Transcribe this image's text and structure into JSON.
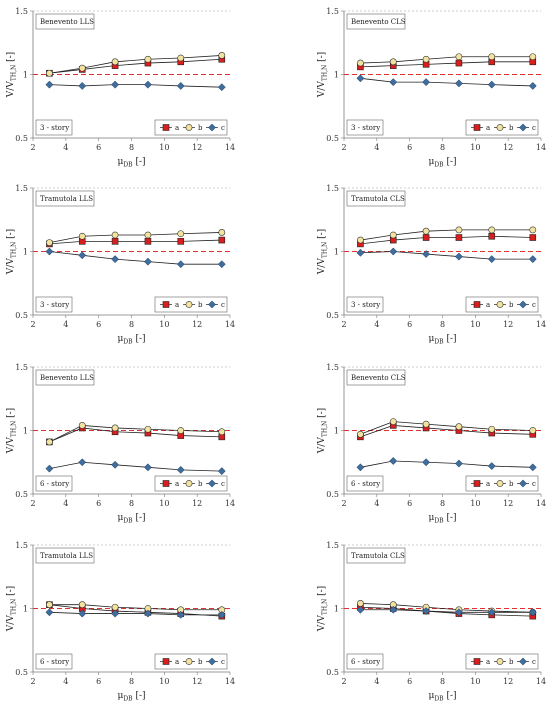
{
  "colors": {
    "a": "#d81e1e",
    "b": "#f2e4a0",
    "c": "#3f6d9e",
    "ref_line": "#e03030",
    "grid": "#9a9a9a",
    "axis": "#7a7a7a"
  },
  "chart_data": [
    {
      "type": "line",
      "title": "Benevento LLS",
      "note": "3 - story",
      "xlabel": "μ",
      "xlabel_sub": "DB",
      "xlabel_unit": " [-]",
      "ylabel": "V/V",
      "ylabel_sub": "TH,N",
      "ylabel_unit": " [-]",
      "xlim": [
        2,
        14
      ],
      "ylim": [
        0.5,
        1.5
      ],
      "xticks": [
        "2",
        "4",
        "6",
        "8",
        "10",
        "12",
        "14"
      ],
      "yticks": [
        "0.5",
        "1",
        "1.5"
      ],
      "ref_y": 1,
      "legend_position": "bottom-right",
      "x": [
        3,
        5,
        7,
        9,
        11,
        13.5
      ],
      "series": [
        {
          "name": "a",
          "marker": "square",
          "values": [
            1.01,
            1.04,
            1.07,
            1.09,
            1.1,
            1.12
          ]
        },
        {
          "name": "b",
          "marker": "circle",
          "values": [
            1.01,
            1.05,
            1.1,
            1.12,
            1.13,
            1.15
          ]
        },
        {
          "name": "c",
          "marker": "diamond",
          "values": [
            0.92,
            0.91,
            0.92,
            0.92,
            0.91,
            0.9
          ]
        }
      ]
    },
    {
      "type": "line",
      "title": "Benevento CLS",
      "note": "3 - story",
      "xlabel": "μ",
      "xlabel_sub": "DB",
      "xlabel_unit": " [-]",
      "ylabel": "V/V",
      "ylabel_sub": "TH,N",
      "ylabel_unit": " [-]",
      "xlim": [
        2,
        14
      ],
      "ylim": [
        0.5,
        1.5
      ],
      "xticks": [
        "2",
        "4",
        "6",
        "8",
        "10",
        "12",
        "14"
      ],
      "yticks": [
        "0.5",
        "1",
        "1.5"
      ],
      "ref_y": 1,
      "legend_position": "bottom-right",
      "x": [
        3,
        5,
        7,
        9,
        11,
        13.5
      ],
      "series": [
        {
          "name": "a",
          "marker": "square",
          "values": [
            1.06,
            1.07,
            1.08,
            1.09,
            1.1,
            1.1
          ]
        },
        {
          "name": "b",
          "marker": "circle",
          "values": [
            1.09,
            1.1,
            1.12,
            1.14,
            1.14,
            1.14
          ]
        },
        {
          "name": "c",
          "marker": "diamond",
          "values": [
            0.97,
            0.94,
            0.94,
            0.93,
            0.92,
            0.91
          ]
        }
      ]
    },
    {
      "type": "line",
      "title": "Tramutola LLS",
      "note": "3 - story",
      "xlabel": "μ",
      "xlabel_sub": "DB",
      "xlabel_unit": " [-]",
      "ylabel": "V/V",
      "ylabel_sub": "TH,N",
      "ylabel_unit": " [-]",
      "xlim": [
        2,
        14
      ],
      "ylim": [
        0.5,
        1.5
      ],
      "xticks": [
        "2",
        "4",
        "6",
        "8",
        "10",
        "12",
        "14"
      ],
      "yticks": [
        "0.5",
        "1",
        "1.5"
      ],
      "ref_y": 1,
      "legend_position": "bottom-right",
      "x": [
        3,
        5,
        7,
        9,
        11,
        13.5
      ],
      "series": [
        {
          "name": "a",
          "marker": "square",
          "values": [
            1.06,
            1.08,
            1.08,
            1.08,
            1.08,
            1.09
          ]
        },
        {
          "name": "b",
          "marker": "circle",
          "values": [
            1.07,
            1.12,
            1.13,
            1.13,
            1.14,
            1.15
          ]
        },
        {
          "name": "c",
          "marker": "diamond",
          "values": [
            1.0,
            0.97,
            0.94,
            0.92,
            0.9,
            0.9
          ]
        }
      ]
    },
    {
      "type": "line",
      "title": "Tramutola CLS",
      "note": "3 - story",
      "xlabel": "μ",
      "xlabel_sub": "DB",
      "xlabel_unit": " [-]",
      "ylabel": "V/V",
      "ylabel_sub": "TH,N",
      "ylabel_unit": " [-]",
      "xlim": [
        2,
        14
      ],
      "ylim": [
        0.5,
        1.5
      ],
      "xticks": [
        "2",
        "4",
        "6",
        "8",
        "10",
        "12",
        "14"
      ],
      "yticks": [
        "0.5",
        "1",
        "1.5"
      ],
      "ref_y": 1,
      "legend_position": "bottom-right",
      "x": [
        3,
        5,
        7,
        9,
        11,
        13.5
      ],
      "series": [
        {
          "name": "a",
          "marker": "square",
          "values": [
            1.06,
            1.09,
            1.11,
            1.11,
            1.12,
            1.11
          ]
        },
        {
          "name": "b",
          "marker": "circle",
          "values": [
            1.09,
            1.13,
            1.16,
            1.17,
            1.17,
            1.17
          ]
        },
        {
          "name": "c",
          "marker": "diamond",
          "values": [
            0.99,
            1.0,
            0.98,
            0.96,
            0.94,
            0.94
          ]
        }
      ]
    },
    {
      "type": "line",
      "title": "Benevento LLS",
      "note": "6 - story",
      "xlabel": "μ",
      "xlabel_sub": "DB",
      "xlabel_unit": " [-]",
      "ylabel": "V/V",
      "ylabel_sub": "TH,N",
      "ylabel_unit": " [-]",
      "xlim": [
        2,
        14
      ],
      "ylim": [
        0.5,
        1.5
      ],
      "xticks": [
        "2",
        "4",
        "6",
        "8",
        "10",
        "12",
        "14"
      ],
      "yticks": [
        "0.5",
        "1",
        "1.5"
      ],
      "ref_y": 1,
      "legend_position": "bottom-right",
      "x": [
        3,
        5,
        7,
        9,
        11,
        13.5
      ],
      "series": [
        {
          "name": "a",
          "marker": "square",
          "values": [
            0.91,
            1.02,
            0.99,
            0.98,
            0.96,
            0.95
          ]
        },
        {
          "name": "b",
          "marker": "circle",
          "values": [
            0.91,
            1.04,
            1.02,
            1.01,
            1.0,
            0.99
          ]
        },
        {
          "name": "c",
          "marker": "diamond",
          "values": [
            0.7,
            0.75,
            0.73,
            0.71,
            0.69,
            0.68
          ]
        }
      ]
    },
    {
      "type": "line",
      "title": "Benevento CLS",
      "note": "6 - story",
      "xlabel": "μ",
      "xlabel_sub": "DB",
      "xlabel_unit": " [-]",
      "ylabel": "V/V",
      "ylabel_sub": "TH,N",
      "ylabel_unit": " [-]",
      "xlim": [
        2,
        14
      ],
      "ylim": [
        0.5,
        1.5
      ],
      "xticks": [
        "2",
        "4",
        "6",
        "8",
        "10",
        "12",
        "14"
      ],
      "yticks": [
        "0.5",
        "1",
        "1.5"
      ],
      "ref_y": 1,
      "legend_position": "bottom-right",
      "x": [
        3,
        5,
        7,
        9,
        11,
        13.5
      ],
      "series": [
        {
          "name": "a",
          "marker": "square",
          "values": [
            0.95,
            1.04,
            1.02,
            1.0,
            0.98,
            0.97
          ]
        },
        {
          "name": "b",
          "marker": "circle",
          "values": [
            0.97,
            1.07,
            1.05,
            1.03,
            1.01,
            1.0
          ]
        },
        {
          "name": "c",
          "marker": "diamond",
          "values": [
            0.71,
            0.76,
            0.75,
            0.74,
            0.72,
            0.71
          ]
        }
      ]
    },
    {
      "type": "line",
      "title": "Tramutola LLS",
      "note": "6 - story",
      "xlabel": "μ",
      "xlabel_sub": "DB",
      "xlabel_unit": " [-]",
      "ylabel": "V/V",
      "ylabel_sub": "TH,N",
      "ylabel_unit": " [-]",
      "xlim": [
        2,
        14
      ],
      "ylim": [
        0.5,
        1.5
      ],
      "xticks": [
        "2",
        "4",
        "6",
        "8",
        "10",
        "12",
        "14"
      ],
      "yticks": [
        "0.5",
        "1",
        "1.5"
      ],
      "ref_y": 1,
      "legend_position": "bottom-right",
      "x": [
        3,
        5,
        7,
        9,
        11,
        13.5
      ],
      "series": [
        {
          "name": "a",
          "marker": "square",
          "values": [
            1.03,
            1.0,
            0.98,
            0.97,
            0.96,
            0.94
          ]
        },
        {
          "name": "b",
          "marker": "circle",
          "values": [
            1.03,
            1.03,
            1.01,
            1.0,
            0.99,
            0.99
          ]
        },
        {
          "name": "c",
          "marker": "diamond",
          "values": [
            0.97,
            0.96,
            0.96,
            0.96,
            0.95,
            0.95
          ]
        }
      ]
    },
    {
      "type": "line",
      "title": "Tramutola CLS",
      "note": "6 - story",
      "xlabel": "μ",
      "xlabel_sub": "DB",
      "xlabel_unit": " [-]",
      "ylabel": "V/V",
      "ylabel_sub": "TH,N",
      "ylabel_unit": " [-]",
      "xlim": [
        2,
        14
      ],
      "ylim": [
        0.5,
        1.5
      ],
      "xticks": [
        "2",
        "4",
        "6",
        "8",
        "10",
        "12",
        "14"
      ],
      "yticks": [
        "0.5",
        "1",
        "1.5"
      ],
      "ref_y": 1,
      "legend_position": "bottom-right",
      "x": [
        3,
        5,
        7,
        9,
        11,
        13.5
      ],
      "series": [
        {
          "name": "a",
          "marker": "square",
          "values": [
            1.01,
            1.0,
            0.98,
            0.96,
            0.95,
            0.94
          ]
        },
        {
          "name": "b",
          "marker": "circle",
          "values": [
            1.04,
            1.03,
            1.01,
            0.99,
            0.98,
            0.97
          ]
        },
        {
          "name": "c",
          "marker": "diamond",
          "values": [
            0.99,
            0.99,
            0.98,
            0.97,
            0.97,
            0.97
          ]
        }
      ]
    }
  ]
}
